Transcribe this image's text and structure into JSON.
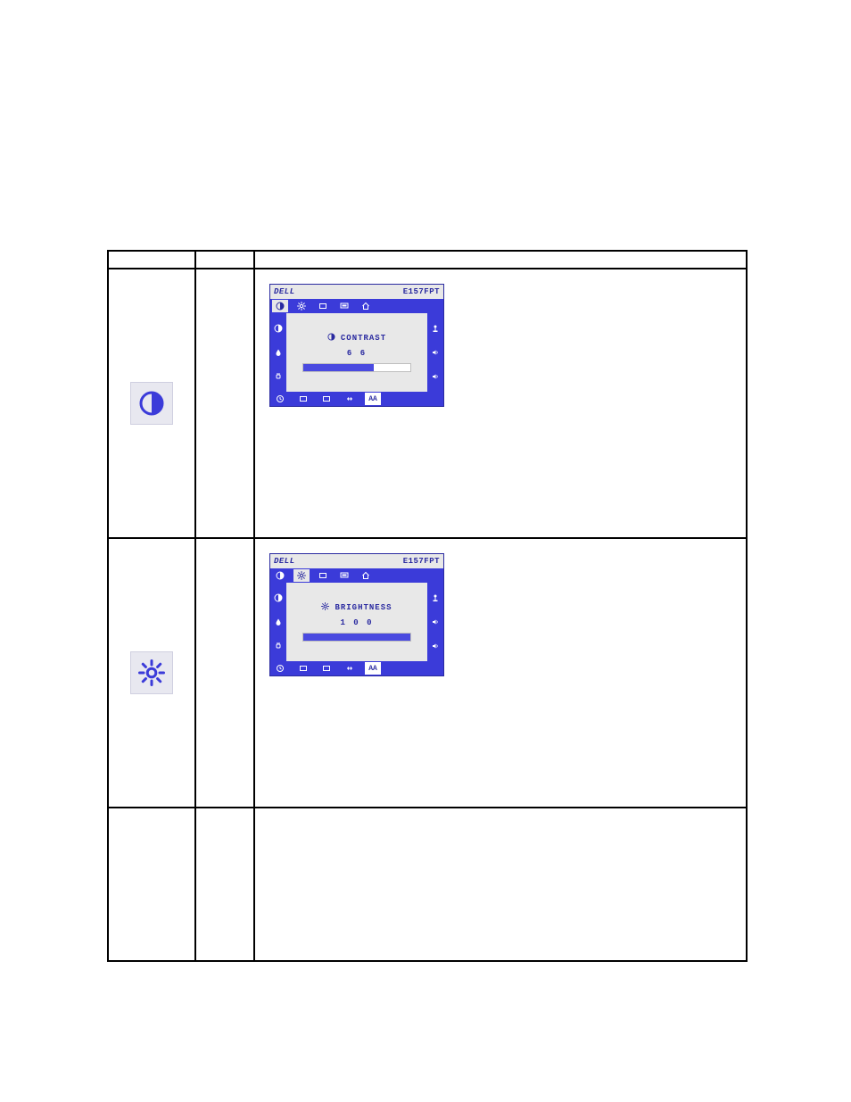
{
  "table": {
    "rows": [
      {
        "kind": "header"
      },
      {
        "kind": "setting",
        "icon": "contrast",
        "osd": {
          "brand": "DELL",
          "model": "E157FPT",
          "active_tab_index": 0,
          "label": "CONTRAST",
          "label_icon": "contrast",
          "value": 66,
          "bar_pct": 66,
          "bg_color": "#3b3bd9",
          "panel_color": "#e8e8e8",
          "fill_color": "#4a4ae0"
        }
      },
      {
        "kind": "setting",
        "icon": "brightness",
        "osd": {
          "brand": "DELL",
          "model": "E157FPT",
          "active_tab_index": 1,
          "label": "BRIGHTNESS",
          "label_icon": "brightness",
          "value": 100,
          "bar_pct": 100,
          "bg_color": "#3b3bd9",
          "panel_color": "#e8e8e8",
          "fill_color": "#4a4ae0"
        }
      },
      {
        "kind": "blank"
      }
    ]
  },
  "icons": {
    "tile_bg": "#e8e8f0",
    "tile_border": "#cfcfe0",
    "glyph_color": "#3b3bd9"
  },
  "osd_common": {
    "top_tabs": [
      "contrast",
      "brightness",
      "rect",
      "screen",
      "home"
    ],
    "left_rail": [
      "contrast",
      "drop",
      "plug"
    ],
    "right_rail": [
      "joystick",
      "speaker",
      "speaker"
    ],
    "bottom_row": [
      "clock",
      "rect",
      "rect",
      "arrows",
      "aa"
    ]
  }
}
